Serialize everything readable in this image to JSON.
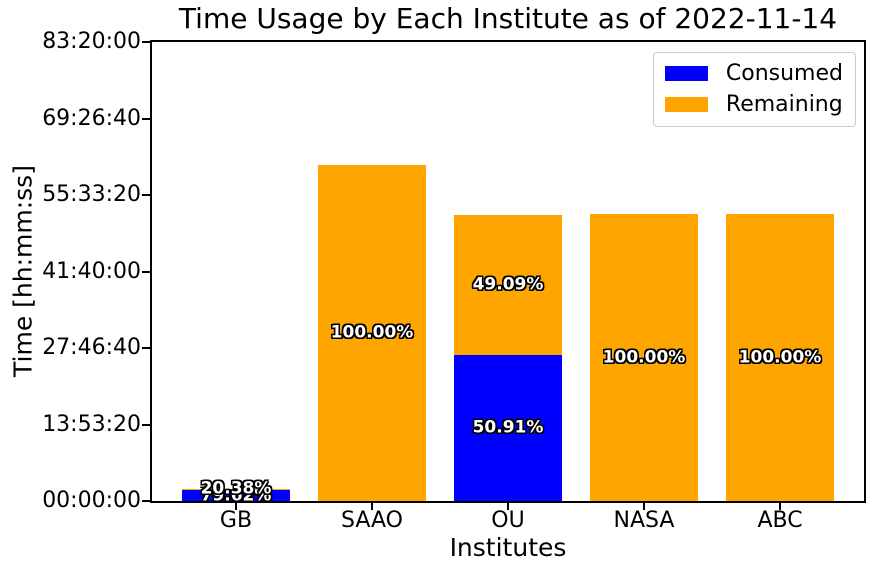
{
  "chart_data": {
    "type": "bar",
    "stacked": true,
    "title": "Time Usage by Each Institute as of 2022-11-14",
    "xlabel": "Institutes",
    "ylabel": "Time [hh:mm:ss]",
    "categories": [
      "GB",
      "SAAO",
      "OU",
      "NASA",
      "ABC"
    ],
    "series": [
      {
        "name": "Consumed",
        "color": "#0000ff",
        "values_seconds": [
          7000,
          0,
          95456,
          0,
          0
        ],
        "segment_labels": [
          "79.62%",
          "",
          "50.91%",
          "",
          ""
        ]
      },
      {
        "name": "Remaining",
        "color": "#ffa500",
        "values_seconds": [
          1790,
          219500,
          92044,
          187500,
          187500
        ],
        "segment_labels": [
          "20.38%",
          "100.00%",
          "49.09%",
          "100.00%",
          "100.00%"
        ]
      }
    ],
    "totals_seconds_estimated": [
      8790,
      219500,
      187500,
      187500,
      187500
    ],
    "y_axis": {
      "min_seconds": 0,
      "max_seconds": 300000,
      "tick_labels": [
        "00:00:00",
        "13:53:20",
        "27:46:40",
        "41:40:00",
        "55:33:20",
        "69:26:40",
        "83:20:00"
      ]
    },
    "legend": {
      "position": "upper-right",
      "entries": [
        "Consumed",
        "Remaining"
      ]
    },
    "grid": false,
    "bar_label_text_color": "#ffffff",
    "bar_label_outline_color": "#000000",
    "axis_color": "#000000",
    "background_color": "#ffffff"
  }
}
